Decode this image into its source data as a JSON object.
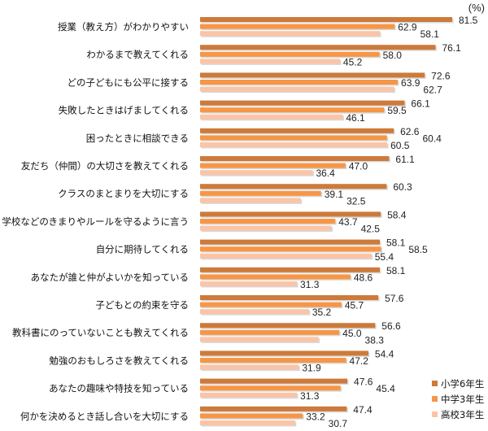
{
  "chart_data": {
    "type": "bar",
    "orientation": "horizontal",
    "unit_label": "(%)",
    "categories": [
      "授業（教え方）がわかりやすい",
      "わかるまで教えてくれる",
      "どの子どもにも公平に接する",
      "失敗したときはげましてくれる",
      "困ったときに相談できる",
      "友だち（仲間）の大切さを教えてくれる",
      "クラスのまとまりを大切にする",
      "学校などのきまりやルールを守るように言う",
      "自分に期待してくれる",
      "あなたが誰と仲がよいかを知っている",
      "子どもとの約束を守る",
      "教科書にのっていないことも教えてくれる",
      "勉強のおもしろさを教えてくれる",
      "あなたの趣味や特技を知っている",
      "何かを決めるとき話し合いを大切にする"
    ],
    "series": [
      {
        "name": "小学6年生",
        "color": "#cd7a3a",
        "values": [
          81.5,
          76.1,
          72.6,
          66.1,
          62.6,
          61.1,
          60.3,
          58.4,
          58.1,
          58.1,
          57.6,
          56.6,
          54.4,
          47.6,
          47.4
        ]
      },
      {
        "name": "中学3年生",
        "color": "#f79646",
        "values": [
          62.9,
          58.0,
          63.9,
          59.5,
          60.4,
          47.0,
          39.1,
          43.7,
          58.5,
          48.6,
          45.7,
          45.0,
          47.2,
          45.4,
          33.2
        ]
      },
      {
        "name": "高校3年生",
        "color": "#fbc4a6",
        "values": [
          58.1,
          45.2,
          62.7,
          46.1,
          60.5,
          36.4,
          32.5,
          42.5,
          55.4,
          31.3,
          35.2,
          38.3,
          31.9,
          31.3,
          30.7
        ]
      }
    ],
    "xlim": [
      0,
      100
    ],
    "grid": false,
    "data_labels": true,
    "legend_position": "bottom-right"
  }
}
